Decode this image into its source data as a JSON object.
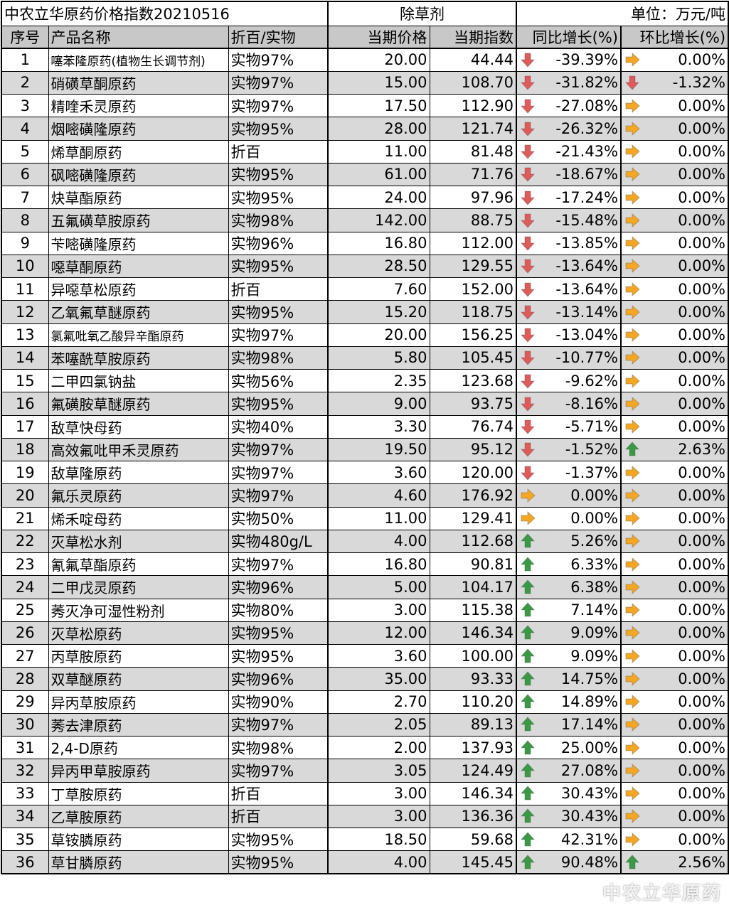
{
  "title": "中农立华原药价格指数20210516",
  "category": "除草剂",
  "unit": "单位：万元/吨",
  "headers": [
    "序号",
    "产品名称",
    "折百/实物",
    "当期价格",
    "当期指数",
    "同比增长(%)",
    "环比增长(%)"
  ],
  "colors": {
    "down": "#e05a5a",
    "up": "#3a9a44",
    "flat": "#f5a623",
    "header_bg": "#c8c8c8",
    "alt_row_bg": "#d9d9d9"
  },
  "rows": [
    {
      "no": "1",
      "name": "噻苯隆原药(植物生长调节剂)",
      "spec": "实物97%",
      "price": "20.00",
      "index": "44.44",
      "yoy": "-39.39%",
      "yoy_icon": "arrow-down",
      "mom": "0.00%",
      "mom_icon": "arrow-right"
    },
    {
      "no": "2",
      "name": "硝磺草酮原药",
      "spec": "实物97%",
      "price": "15.00",
      "index": "108.70",
      "yoy": "-31.82%",
      "yoy_icon": "arrow-down",
      "mom": "-1.32%",
      "mom_icon": "arrow-down"
    },
    {
      "no": "3",
      "name": "精喹禾灵原药",
      "spec": "实物97%",
      "price": "17.50",
      "index": "112.90",
      "yoy": "-27.08%",
      "yoy_icon": "arrow-down",
      "mom": "0.00%",
      "mom_icon": "arrow-right"
    },
    {
      "no": "4",
      "name": "烟嘧磺隆原药",
      "spec": "实物95%",
      "price": "28.00",
      "index": "121.74",
      "yoy": "-26.32%",
      "yoy_icon": "arrow-down",
      "mom": "0.00%",
      "mom_icon": "arrow-right"
    },
    {
      "no": "5",
      "name": "烯草酮原药",
      "spec": "折百",
      "price": "11.00",
      "index": "81.48",
      "yoy": "-21.43%",
      "yoy_icon": "arrow-down",
      "mom": "0.00%",
      "mom_icon": "arrow-right"
    },
    {
      "no": "6",
      "name": "砜嘧磺隆原药",
      "spec": "实物95%",
      "price": "61.00",
      "index": "71.76",
      "yoy": "-18.67%",
      "yoy_icon": "arrow-down",
      "mom": "0.00%",
      "mom_icon": "arrow-right"
    },
    {
      "no": "7",
      "name": "炔草酯原药",
      "spec": "实物95%",
      "price": "24.00",
      "index": "97.96",
      "yoy": "-17.24%",
      "yoy_icon": "arrow-down",
      "mom": "0.00%",
      "mom_icon": "arrow-right"
    },
    {
      "no": "8",
      "name": "五氟磺草胺原药",
      "spec": "实物98%",
      "price": "142.00",
      "index": "88.75",
      "yoy": "-15.48%",
      "yoy_icon": "arrow-down",
      "mom": "0.00%",
      "mom_icon": "arrow-right"
    },
    {
      "no": "9",
      "name": "苄嘧磺隆原药",
      "spec": "实物96%",
      "price": "16.80",
      "index": "112.00",
      "yoy": "-13.85%",
      "yoy_icon": "arrow-down",
      "mom": "0.00%",
      "mom_icon": "arrow-right"
    },
    {
      "no": "10",
      "name": "噁草酮原药",
      "spec": "实物95%",
      "price": "28.50",
      "index": "129.55",
      "yoy": "-13.64%",
      "yoy_icon": "arrow-down",
      "mom": "0.00%",
      "mom_icon": "arrow-right"
    },
    {
      "no": "11",
      "name": "异噁草松原药",
      "spec": "折百",
      "price": "7.60",
      "index": "152.00",
      "yoy": "-13.64%",
      "yoy_icon": "arrow-down",
      "mom": "0.00%",
      "mom_icon": "arrow-right"
    },
    {
      "no": "12",
      "name": "乙氧氟草醚原药",
      "spec": "实物95%",
      "price": "15.20",
      "index": "118.75",
      "yoy": "-13.14%",
      "yoy_icon": "arrow-down",
      "mom": "0.00%",
      "mom_icon": "arrow-right"
    },
    {
      "no": "13",
      "name": "氯氟吡氧乙酸异辛酯原药",
      "spec": "实物97%",
      "price": "20.00",
      "index": "156.25",
      "yoy": "-13.04%",
      "yoy_icon": "arrow-down",
      "mom": "0.00%",
      "mom_icon": "arrow-right"
    },
    {
      "no": "14",
      "name": "苯噻酰草胺原药",
      "spec": "实物98%",
      "price": "5.80",
      "index": "105.45",
      "yoy": "-10.77%",
      "yoy_icon": "arrow-down",
      "mom": "0.00%",
      "mom_icon": "arrow-right"
    },
    {
      "no": "15",
      "name": "二甲四氯钠盐",
      "spec": "实物56%",
      "price": "2.35",
      "index": "123.68",
      "yoy": "-9.62%",
      "yoy_icon": "arrow-down",
      "mom": "0.00%",
      "mom_icon": "arrow-right"
    },
    {
      "no": "16",
      "name": "氟磺胺草醚原药",
      "spec": "实物95%",
      "price": "9.00",
      "index": "93.75",
      "yoy": "-8.16%",
      "yoy_icon": "arrow-down",
      "mom": "0.00%",
      "mom_icon": "arrow-right"
    },
    {
      "no": "17",
      "name": "敌草快母药",
      "spec": "实物40%",
      "price": "3.30",
      "index": "76.74",
      "yoy": "-5.71%",
      "yoy_icon": "arrow-down",
      "mom": "0.00%",
      "mom_icon": "arrow-right"
    },
    {
      "no": "18",
      "name": "高效氟吡甲禾灵原药",
      "spec": "实物97%",
      "price": "19.50",
      "index": "95.12",
      "yoy": "-1.52%",
      "yoy_icon": "arrow-down",
      "mom": "2.63%",
      "mom_icon": "arrow-up"
    },
    {
      "no": "19",
      "name": "敌草隆原药",
      "spec": "实物97%",
      "price": "3.60",
      "index": "120.00",
      "yoy": "-1.37%",
      "yoy_icon": "arrow-down",
      "mom": "0.00%",
      "mom_icon": "arrow-right"
    },
    {
      "no": "20",
      "name": "氟乐灵原药",
      "spec": "实物97%",
      "price": "4.60",
      "index": "176.92",
      "yoy": "0.00%",
      "yoy_icon": "arrow-right",
      "mom": "0.00%",
      "mom_icon": "arrow-right"
    },
    {
      "no": "21",
      "name": "烯禾啶母药",
      "spec": "实物50%",
      "price": "11.00",
      "index": "129.41",
      "yoy": "0.00%",
      "yoy_icon": "arrow-right",
      "mom": "0.00%",
      "mom_icon": "arrow-right"
    },
    {
      "no": "22",
      "name": "灭草松水剂",
      "spec": "实物480g/L",
      "price": "4.00",
      "index": "112.68",
      "yoy": "5.26%",
      "yoy_icon": "arrow-up",
      "mom": "0.00%",
      "mom_icon": "arrow-right"
    },
    {
      "no": "23",
      "name": "氰氟草酯原药",
      "spec": "实物97%",
      "price": "16.80",
      "index": "90.81",
      "yoy": "6.33%",
      "yoy_icon": "arrow-up",
      "mom": "0.00%",
      "mom_icon": "arrow-right"
    },
    {
      "no": "24",
      "name": "二甲戊灵原药",
      "spec": "实物96%",
      "price": "5.00",
      "index": "104.17",
      "yoy": "6.38%",
      "yoy_icon": "arrow-up",
      "mom": "0.00%",
      "mom_icon": "arrow-right"
    },
    {
      "no": "25",
      "name": "莠灭净可湿性粉剂",
      "spec": "实物80%",
      "price": "3.00",
      "index": "115.38",
      "yoy": "7.14%",
      "yoy_icon": "arrow-up",
      "mom": "0.00%",
      "mom_icon": "arrow-right"
    },
    {
      "no": "26",
      "name": "灭草松原药",
      "spec": "实物95%",
      "price": "12.00",
      "index": "146.34",
      "yoy": "9.09%",
      "yoy_icon": "arrow-up",
      "mom": "0.00%",
      "mom_icon": "arrow-right"
    },
    {
      "no": "27",
      "name": "丙草胺原药",
      "spec": "实物95%",
      "price": "3.60",
      "index": "100.00",
      "yoy": "9.09%",
      "yoy_icon": "arrow-up",
      "mom": "0.00%",
      "mom_icon": "arrow-right"
    },
    {
      "no": "28",
      "name": "双草醚原药",
      "spec": "实物96%",
      "price": "35.00",
      "index": "93.33",
      "yoy": "14.75%",
      "yoy_icon": "arrow-up",
      "mom": "0.00%",
      "mom_icon": "arrow-right"
    },
    {
      "no": "29",
      "name": "异丙草胺原药",
      "spec": "实物90%",
      "price": "2.70",
      "index": "110.20",
      "yoy": "14.89%",
      "yoy_icon": "arrow-up",
      "mom": "0.00%",
      "mom_icon": "arrow-right"
    },
    {
      "no": "30",
      "name": "莠去津原药",
      "spec": "实物97%",
      "price": "2.05",
      "index": "89.13",
      "yoy": "17.14%",
      "yoy_icon": "arrow-up",
      "mom": "0.00%",
      "mom_icon": "arrow-right"
    },
    {
      "no": "31",
      "name": "2,4-D原药",
      "spec": "实物98%",
      "price": "2.00",
      "index": "137.93",
      "yoy": "25.00%",
      "yoy_icon": "arrow-up",
      "mom": "0.00%",
      "mom_icon": "arrow-right"
    },
    {
      "no": "32",
      "name": "异丙甲草胺原药",
      "spec": "实物97%",
      "price": "3.05",
      "index": "124.49",
      "yoy": "27.08%",
      "yoy_icon": "arrow-up",
      "mom": "0.00%",
      "mom_icon": "arrow-right"
    },
    {
      "no": "33",
      "name": "丁草胺原药",
      "spec": "折百",
      "price": "3.00",
      "index": "146.34",
      "yoy": "30.43%",
      "yoy_icon": "arrow-up",
      "mom": "0.00%",
      "mom_icon": "arrow-right"
    },
    {
      "no": "34",
      "name": "乙草胺原药",
      "spec": "折百",
      "price": "3.00",
      "index": "136.36",
      "yoy": "30.43%",
      "yoy_icon": "arrow-up",
      "mom": "0.00%",
      "mom_icon": "arrow-right"
    },
    {
      "no": "35",
      "name": "草铵膦原药",
      "spec": "实物95%",
      "price": "18.50",
      "index": "59.68",
      "yoy": "42.31%",
      "yoy_icon": "arrow-up",
      "mom": "0.00%",
      "mom_icon": "arrow-right"
    },
    {
      "no": "36",
      "name": "草甘膦原药",
      "spec": "实物95%",
      "price": "4.00",
      "index": "145.45",
      "yoy": "90.48%",
      "yoy_icon": "arrow-up",
      "mom": "2.56%",
      "mom_icon": "arrow-up"
    }
  ],
  "watermark": "中农立华原药"
}
